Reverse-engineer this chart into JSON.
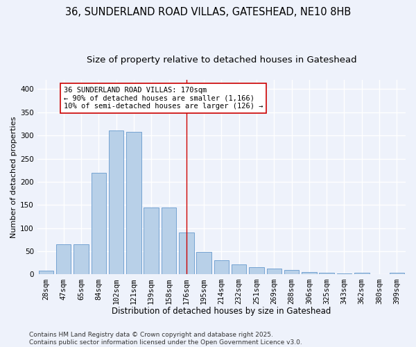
{
  "title1": "36, SUNDERLAND ROAD VILLAS, GATESHEAD, NE10 8HB",
  "title2": "Size of property relative to detached houses in Gateshead",
  "xlabel": "Distribution of detached houses by size in Gateshead",
  "ylabel": "Number of detached properties",
  "categories": [
    "28sqm",
    "47sqm",
    "65sqm",
    "84sqm",
    "102sqm",
    "121sqm",
    "139sqm",
    "158sqm",
    "176sqm",
    "195sqm",
    "214sqm",
    "232sqm",
    "251sqm",
    "269sqm",
    "288sqm",
    "306sqm",
    "325sqm",
    "343sqm",
    "362sqm",
    "380sqm",
    "399sqm"
  ],
  "values": [
    8,
    65,
    65,
    220,
    310,
    308,
    145,
    145,
    90,
    48,
    30,
    22,
    15,
    12,
    10,
    5,
    4,
    2,
    3,
    1,
    3
  ],
  "bar_color": "#b8d0e8",
  "bar_edge_color": "#6699cc",
  "background_color": "#eef2fb",
  "grid_color": "#ffffff",
  "vline_x": 8.0,
  "vline_color": "#cc0000",
  "annotation_line1": "36 SUNDERLAND ROAD VILLAS: 170sqm",
  "annotation_line2": "← 90% of detached houses are smaller (1,166)",
  "annotation_line3": "10% of semi-detached houses are larger (126) →",
  "annotation_box_color": "#ffffff",
  "annotation_box_edge": "#cc0000",
  "footer1": "Contains HM Land Registry data © Crown copyright and database right 2025.",
  "footer2": "Contains public sector information licensed under the Open Government Licence v3.0.",
  "ylim": [
    0,
    420
  ],
  "yticks": [
    0,
    50,
    100,
    150,
    200,
    250,
    300,
    350,
    400
  ],
  "title1_fontsize": 10.5,
  "title2_fontsize": 9.5,
  "xlabel_fontsize": 8.5,
  "ylabel_fontsize": 8.0,
  "tick_fontsize": 7.5,
  "annotation_fontsize": 7.5,
  "footer_fontsize": 6.5
}
